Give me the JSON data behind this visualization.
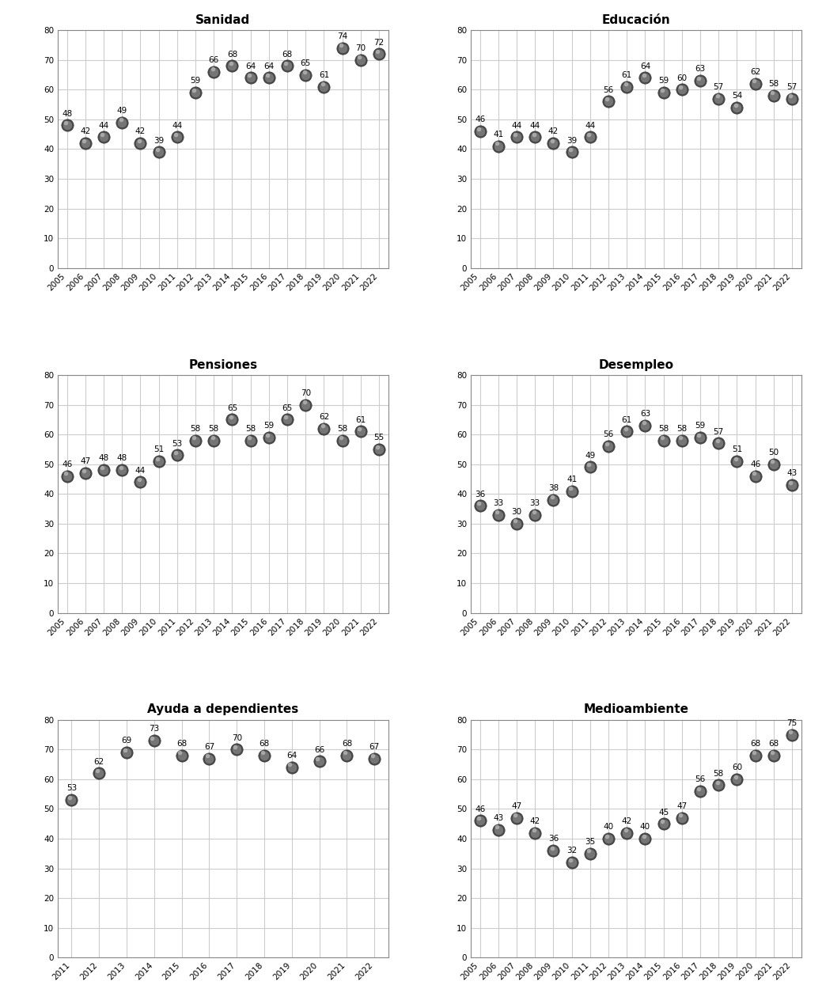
{
  "years": [
    2005,
    2006,
    2007,
    2008,
    2009,
    2010,
    2011,
    2012,
    2013,
    2014,
    2015,
    2016,
    2017,
    2018,
    2019,
    2020,
    2021,
    2022
  ],
  "series": {
    "Sanidad": [
      48,
      42,
      44,
      49,
      42,
      39,
      44,
      59,
      66,
      68,
      64,
      64,
      68,
      65,
      61,
      74,
      70,
      72
    ],
    "Educación": [
      46,
      41,
      44,
      44,
      42,
      39,
      44,
      56,
      61,
      64,
      59,
      60,
      63,
      57,
      54,
      62,
      58,
      57
    ],
    "Pensiones": [
      46,
      47,
      48,
      48,
      44,
      51,
      53,
      58,
      58,
      65,
      58,
      59,
      65,
      70,
      62,
      58,
      61,
      55
    ],
    "Desempleo": [
      36,
      33,
      30,
      33,
      38,
      41,
      49,
      56,
      61,
      63,
      58,
      58,
      59,
      57,
      51,
      46,
      50,
      43
    ],
    "Ayuda a dependientes": [
      null,
      null,
      null,
      null,
      null,
      null,
      53,
      62,
      69,
      73,
      68,
      67,
      70,
      68,
      64,
      66,
      68,
      67
    ],
    "Medioambiente": [
      46,
      43,
      47,
      42,
      36,
      32,
      35,
      40,
      42,
      40,
      45,
      47,
      56,
      58,
      60,
      68,
      68,
      75
    ]
  },
  "ylim": [
    0,
    80
  ],
  "yticks": [
    0,
    10,
    20,
    30,
    40,
    50,
    60,
    70,
    80
  ],
  "label_fontsize": 7.5,
  "title_fontsize": 11,
  "tick_fontsize": 7.5,
  "background_color": "#ffffff",
  "grid_color": "#cccccc"
}
